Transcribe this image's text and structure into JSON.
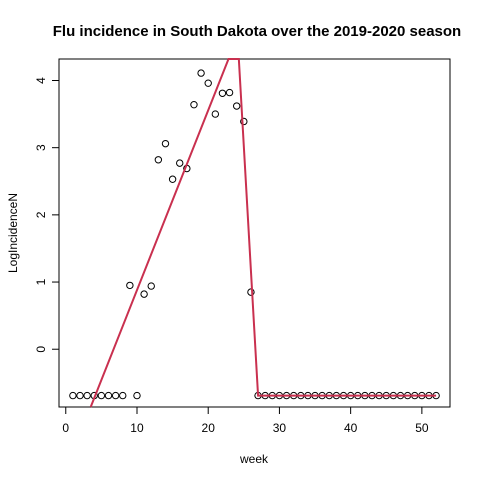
{
  "chart_data": {
    "type": "scatter",
    "title": "Flu incidence in South Dakota over the 2019-2020 season",
    "xlabel": "week",
    "ylabel": "LogIncidenceN",
    "xlim": [
      -0.95,
      53.95
    ],
    "ylim": [
      -0.86,
      4.32
    ],
    "xticks": [
      0,
      10,
      20,
      30,
      40,
      50
    ],
    "yticks": [
      0,
      1,
      2,
      3,
      4
    ],
    "grid": false,
    "legend": "none",
    "point_color": "#000000",
    "line_color": "#c9304f",
    "points": [
      {
        "x": 1,
        "y": -0.69
      },
      {
        "x": 2,
        "y": -0.69
      },
      {
        "x": 3,
        "y": -0.69
      },
      {
        "x": 4,
        "y": -0.69
      },
      {
        "x": 5,
        "y": -0.69
      },
      {
        "x": 6,
        "y": -0.69
      },
      {
        "x": 7,
        "y": -0.69
      },
      {
        "x": 8,
        "y": -0.69
      },
      {
        "x": 9,
        "y": 0.95
      },
      {
        "x": 10,
        "y": -0.69
      },
      {
        "x": 11,
        "y": 0.82
      },
      {
        "x": 12,
        "y": 0.94
      },
      {
        "x": 13,
        "y": 2.82
      },
      {
        "x": 14,
        "y": 3.06
      },
      {
        "x": 15,
        "y": 2.53
      },
      {
        "x": 16,
        "y": 2.77
      },
      {
        "x": 17,
        "y": 2.69
      },
      {
        "x": 18,
        "y": 3.64
      },
      {
        "x": 19,
        "y": 4.11
      },
      {
        "x": 20,
        "y": 3.96
      },
      {
        "x": 21,
        "y": 3.5
      },
      {
        "x": 22,
        "y": 3.81
      },
      {
        "x": 23,
        "y": 3.82
      },
      {
        "x": 24,
        "y": 3.62
      },
      {
        "x": 25,
        "y": 3.39
      },
      {
        "x": 26,
        "y": 0.85
      },
      {
        "x": 27,
        "y": -0.69
      },
      {
        "x": 28,
        "y": -0.69
      },
      {
        "x": 29,
        "y": -0.69
      },
      {
        "x": 30,
        "y": -0.69
      },
      {
        "x": 31,
        "y": -0.69
      },
      {
        "x": 32,
        "y": -0.69
      },
      {
        "x": 33,
        "y": -0.69
      },
      {
        "x": 34,
        "y": -0.69
      },
      {
        "x": 35,
        "y": -0.69
      },
      {
        "x": 36,
        "y": -0.69
      },
      {
        "x": 37,
        "y": -0.69
      },
      {
        "x": 38,
        "y": -0.69
      },
      {
        "x": 39,
        "y": -0.69
      },
      {
        "x": 40,
        "y": -0.69
      },
      {
        "x": 41,
        "y": -0.69
      },
      {
        "x": 42,
        "y": -0.69
      },
      {
        "x": 43,
        "y": -0.69
      },
      {
        "x": 44,
        "y": -0.69
      },
      {
        "x": 45,
        "y": -0.69
      },
      {
        "x": 46,
        "y": -0.69
      },
      {
        "x": 47,
        "y": -0.69
      },
      {
        "x": 48,
        "y": -0.69
      },
      {
        "x": 49,
        "y": -0.69
      },
      {
        "x": 50,
        "y": -0.69
      },
      {
        "x": 51,
        "y": -0.69
      },
      {
        "x": 52,
        "y": -0.69
      }
    ],
    "fitted_line": [
      {
        "x": 3.5,
        "y": -0.86
      },
      {
        "x": 22.85,
        "y": 4.32
      },
      {
        "x": 24.3,
        "y": 4.32
      },
      {
        "x": 27.0,
        "y": -0.69
      },
      {
        "x": 52.0,
        "y": -0.69
      }
    ]
  }
}
